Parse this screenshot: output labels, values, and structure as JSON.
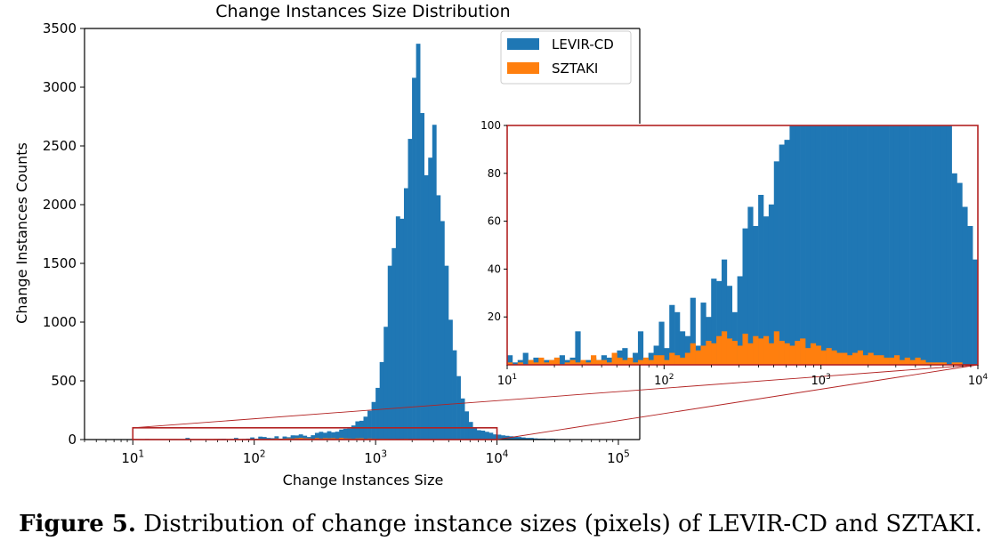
{
  "caption": {
    "label": "Figure 5.",
    "text": "Distribution of change instance sizes (pixels) of LEVIR-CD and SZTAKI."
  },
  "colors": {
    "levir": "#1f77b4",
    "sztaki": "#ff7f0e",
    "zoom_box": "#b22222"
  },
  "chart_data": [
    {
      "type": "bar",
      "title": "Change Instances Size Distribution",
      "xlabel": "Change Instances Size",
      "ylabel": "Change Instances Counts",
      "xscale": "log",
      "xlim": [
        4,
        150000
      ],
      "ylim": [
        0,
        3500
      ],
      "yticks": [
        0,
        500,
        1000,
        1500,
        2000,
        2500,
        3000,
        3500
      ],
      "xticks": [
        {
          "base": "10",
          "exp": "1"
        },
        {
          "base": "10",
          "exp": "2"
        },
        {
          "base": "10",
          "exp": "3"
        },
        {
          "base": "10",
          "exp": "4"
        },
        {
          "base": "10",
          "exp": "5"
        }
      ],
      "legend_position": "top-right",
      "bins_per_decade": 30,
      "series": [
        {
          "name": "LEVIR-CD",
          "color": "#1f77b4",
          "start_exp": 1.0,
          "values": [
            4,
            1,
            2,
            5,
            2,
            3,
            1,
            2,
            2,
            3,
            4,
            2,
            3,
            14,
            1,
            2,
            3,
            2,
            4,
            3,
            2,
            6,
            7,
            2,
            5,
            14,
            3,
            5,
            8,
            18,
            7,
            25,
            22,
            14,
            12,
            28,
            8,
            26,
            20,
            36,
            35,
            44,
            33,
            22,
            37,
            57,
            66,
            58,
            71,
            62,
            67,
            85,
            92,
            94,
            120,
            155,
            160,
            195,
            245,
            320,
            440,
            660,
            960,
            1480,
            1630,
            1900,
            1880,
            2140,
            2560,
            3080,
            3370,
            2780,
            2250,
            2400,
            2680,
            2080,
            1860,
            1480,
            1020,
            760,
            540,
            350,
            240,
            150,
            105,
            80,
            76,
            66,
            58,
            44,
            42,
            36,
            32,
            28,
            26,
            22,
            18,
            14,
            14,
            10,
            8,
            8,
            6,
            7,
            5,
            4,
            3,
            3,
            2,
            1,
            1,
            0,
            2,
            0,
            1,
            1,
            0,
            0,
            1,
            0,
            0,
            0,
            0,
            0
          ]
        },
        {
          "name": "SZTAKI",
          "color": "#ff7f0e",
          "start_exp": 1.0,
          "values": [
            1,
            0,
            1,
            0,
            2,
            1,
            3,
            1,
            2,
            3,
            0,
            1,
            2,
            1,
            2,
            1,
            4,
            2,
            2,
            1,
            5,
            3,
            2,
            3,
            1,
            2,
            3,
            2,
            4,
            4,
            2,
            5,
            4,
            3,
            5,
            9,
            6,
            8,
            10,
            9,
            12,
            14,
            11,
            10,
            8,
            13,
            9,
            12,
            11,
            12,
            9,
            14,
            10,
            9,
            8,
            10,
            11,
            7,
            9,
            8,
            6,
            7,
            6,
            5,
            5,
            4,
            5,
            6,
            4,
            5,
            4,
            4,
            3,
            3,
            4,
            2,
            3,
            2,
            3,
            2,
            1,
            1,
            1,
            1,
            0,
            1,
            1,
            0,
            0,
            0
          ]
        }
      ]
    },
    {
      "type": "bar",
      "role": "inset-zoom",
      "xscale": "log",
      "xlim": [
        10,
        10000
      ],
      "ylim": [
        0,
        100
      ],
      "yticks": [
        20,
        40,
        60,
        80,
        100
      ],
      "xticks": [
        {
          "base": "10",
          "exp": "1"
        },
        {
          "base": "10",
          "exp": "2"
        },
        {
          "base": "10",
          "exp": "3"
        },
        {
          "base": "10",
          "exp": "4"
        }
      ],
      "series_ref": [
        "LEVIR-CD",
        "SZTAKI"
      ]
    }
  ]
}
